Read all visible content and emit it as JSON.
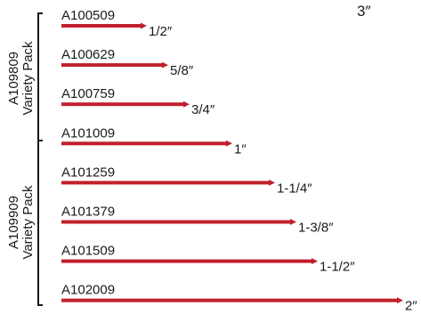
{
  "corner_label": "3″",
  "groups": [
    {
      "label_line1": "A109809",
      "label_line2": "Variety Pack"
    },
    {
      "label_line1": "A109909",
      "label_line2": "Variety Pack"
    }
  ],
  "items": [
    {
      "part": "A100509",
      "size": "1/2″",
      "length_in": 0.5
    },
    {
      "part": "A100629",
      "size": "5/8″",
      "length_in": 0.625
    },
    {
      "part": "A100759",
      "size": "3/4″",
      "length_in": 0.75
    },
    {
      "part": "A101009",
      "size": "1″",
      "length_in": 1.0
    },
    {
      "part": "A101259",
      "size": "1-1/4″",
      "length_in": 1.25
    },
    {
      "part": "A101379",
      "size": "1-3/8″",
      "length_in": 1.375
    },
    {
      "part": "A101509",
      "size": "1-1/2″",
      "length_in": 1.5
    },
    {
      "part": "A102009",
      "size": "2″",
      "length_in": 2.0
    }
  ],
  "colors": {
    "pin": "#c0202b",
    "text": "#1a1a1a",
    "bracket": "#1a1a1a"
  }
}
